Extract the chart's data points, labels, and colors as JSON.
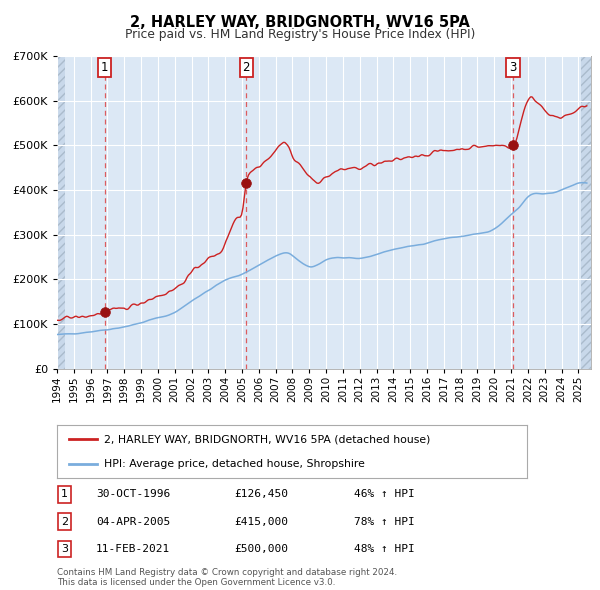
{
  "title": "2, HARLEY WAY, BRIDGNORTH, WV16 5PA",
  "subtitle": "Price paid vs. HM Land Registry's House Price Index (HPI)",
  "ylim": [
    0,
    700000
  ],
  "yticks": [
    0,
    100000,
    200000,
    300000,
    400000,
    500000,
    600000,
    700000
  ],
  "hpi_color": "#7aaddd",
  "price_color": "#cc2222",
  "sale_color": "#991111",
  "vline_color": "#dd4444",
  "bg_color": "#dce8f5",
  "sales": [
    {
      "date": 1996.83,
      "price": 126450,
      "label": "1"
    },
    {
      "date": 2005.25,
      "price": 415000,
      "label": "2"
    },
    {
      "date": 2021.12,
      "price": 500000,
      "label": "3"
    }
  ],
  "legend_line1": "2, HARLEY WAY, BRIDGNORTH, WV16 5PA (detached house)",
  "legend_line2": "HPI: Average price, detached house, Shropshire",
  "table_rows": [
    {
      "num": "1",
      "date": "30-OCT-1996",
      "price": "£126,450",
      "change": "46% ↑ HPI"
    },
    {
      "num": "2",
      "date": "04-APR-2005",
      "price": "£415,000",
      "change": "78% ↑ HPI"
    },
    {
      "num": "3",
      "date": "11-FEB-2021",
      "price": "£500,000",
      "change": "48% ↑ HPI"
    }
  ],
  "footer": "Contains HM Land Registry data © Crown copyright and database right 2024.\nThis data is licensed under the Open Government Licence v3.0.",
  "xmin": 1994.0,
  "xmax": 2025.75,
  "hatch_left_end": 1994.5,
  "hatch_right_start": 2025.17
}
